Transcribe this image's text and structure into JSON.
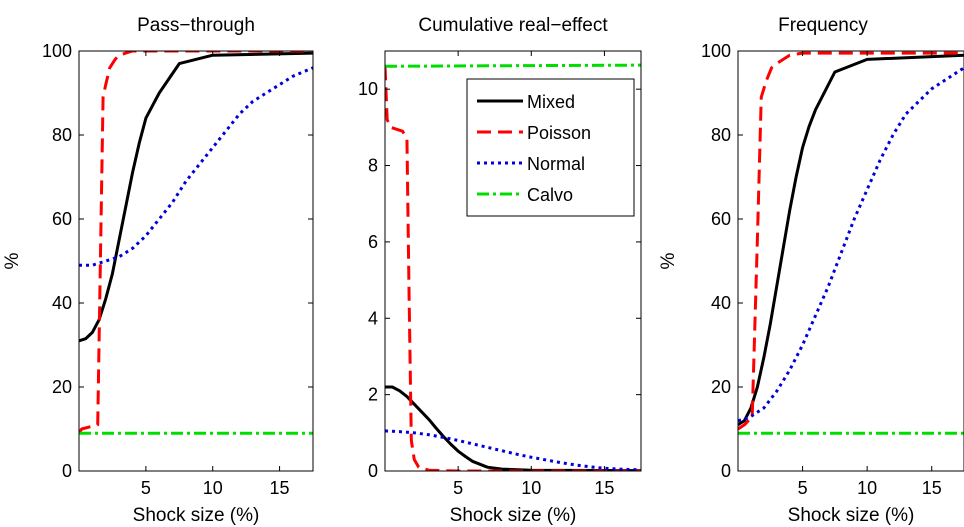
{
  "chart_data": [
    {
      "type": "line",
      "title": "Pass−through",
      "xlabel": "Shock size (%)",
      "ylabel": "%",
      "xlim": [
        0,
        17.5
      ],
      "ylim": [
        0,
        100
      ],
      "xticks": [
        {
          "v": 5,
          "label": "5"
        },
        {
          "v": 10,
          "label": "10"
        },
        {
          "v": 15,
          "label": "15"
        }
      ],
      "yticks": [
        {
          "v": 0,
          "label": "0"
        },
        {
          "v": 20,
          "label": "20"
        },
        {
          "v": 40,
          "label": "40"
        },
        {
          "v": 60,
          "label": "60"
        },
        {
          "v": 80,
          "label": "80"
        },
        {
          "v": 100,
          "label": "100"
        }
      ],
      "grid": false,
      "series": [
        {
          "key": "mixed",
          "x": [
            0,
            0.5,
            1,
            1.5,
            2,
            2.5,
            3,
            3.5,
            4,
            4.5,
            5,
            5.5,
            6,
            7.5,
            10,
            17.5
          ],
          "y": [
            31,
            31.5,
            33,
            36,
            41,
            47,
            55,
            63,
            71,
            78,
            84,
            87,
            90,
            97,
            99,
            99.5
          ]
        },
        {
          "key": "poisson",
          "x": [
            0,
            0.2,
            1.4,
            1.6,
            1.8,
            2,
            2.3,
            2.7,
            3,
            3.5,
            4,
            5,
            17.5
          ],
          "y": [
            9,
            10,
            11,
            50,
            89,
            92,
            96,
            98,
            99,
            99.5,
            100,
            100,
            100
          ]
        },
        {
          "key": "normal",
          "x": [
            0,
            1,
            2,
            3,
            4,
            5,
            6,
            7,
            8,
            9,
            10,
            11,
            12,
            13,
            14,
            15,
            16,
            17.5
          ],
          "y": [
            49,
            49,
            50,
            51,
            53,
            56,
            60,
            64,
            69,
            73,
            77,
            81,
            85,
            88,
            90,
            92,
            94,
            96
          ]
        },
        {
          "key": "calvo",
          "x": [
            0,
            17.5
          ],
          "y": [
            9,
            9
          ]
        }
      ]
    },
    {
      "type": "line",
      "title": "Cumulative real−effect",
      "xlabel": "Shock size (%)",
      "xlim": [
        0,
        17.5
      ],
      "ylim": [
        0,
        11
      ],
      "xticks": [
        {
          "v": 5,
          "label": "5"
        },
        {
          "v": 10,
          "label": "10"
        },
        {
          "v": 15,
          "label": "15"
        }
      ],
      "yticks": [
        {
          "v": 0,
          "label": "0"
        },
        {
          "v": 2,
          "label": "2"
        },
        {
          "v": 4,
          "label": "4"
        },
        {
          "v": 6,
          "label": "6"
        },
        {
          "v": 8,
          "label": "8"
        },
        {
          "v": 10,
          "label": "10"
        }
      ],
      "grid": false,
      "legend": {
        "position": "top-right",
        "entries": [
          "Mixed",
          "Poisson",
          "Normal",
          "Calvo"
        ]
      },
      "series": [
        {
          "key": "mixed",
          "name": "Mixed",
          "x": [
            0,
            0.5,
            1,
            1.5,
            2,
            2.5,
            3,
            3.5,
            4,
            4.5,
            5,
            5.5,
            6,
            7,
            8,
            10,
            17.5
          ],
          "y": [
            2.2,
            2.2,
            2.1,
            1.95,
            1.75,
            1.55,
            1.35,
            1.12,
            0.9,
            0.7,
            0.52,
            0.38,
            0.25,
            0.1,
            0.05,
            0.02,
            0.01
          ]
        },
        {
          "key": "poisson",
          "name": "Poisson",
          "x": [
            0,
            0.15,
            0.4,
            0.8,
            1.2,
            1.5,
            1.65,
            1.8,
            2,
            2.3,
            3,
            5,
            17.5
          ],
          "y": [
            10.6,
            9.2,
            9.0,
            8.95,
            8.9,
            8.7,
            4.5,
            0.8,
            0.3,
            0.1,
            0.02,
            0,
            0
          ]
        },
        {
          "key": "normal",
          "name": "Normal",
          "x": [
            0,
            1,
            2,
            3,
            4,
            5,
            6,
            7,
            8,
            9,
            10,
            11,
            12,
            13,
            14,
            15,
            16,
            17.5
          ],
          "y": [
            1.05,
            1.03,
            1.0,
            0.95,
            0.88,
            0.8,
            0.71,
            0.62,
            0.53,
            0.44,
            0.36,
            0.29,
            0.22,
            0.16,
            0.11,
            0.07,
            0.05,
            0.03
          ]
        },
        {
          "key": "calvo",
          "name": "Calvo",
          "x": [
            0,
            17.5
          ],
          "y": [
            10.6,
            10.63
          ]
        }
      ]
    },
    {
      "type": "line",
      "title": "Frequency",
      "xlabel": "Shock size (%)",
      "ylabel": "%",
      "xlim": [
        0,
        17.5
      ],
      "ylim": [
        0,
        100
      ],
      "xticks": [
        {
          "v": 5,
          "label": "5"
        },
        {
          "v": 10,
          "label": "10"
        },
        {
          "v": 15,
          "label": "15"
        }
      ],
      "yticks": [
        {
          "v": 0,
          "label": "0"
        },
        {
          "v": 20,
          "label": "20"
        },
        {
          "v": 40,
          "label": "40"
        },
        {
          "v": 60,
          "label": "60"
        },
        {
          "v": 80,
          "label": "80"
        },
        {
          "v": 100,
          "label": "100"
        }
      ],
      "grid": false,
      "series": [
        {
          "key": "mixed",
          "x": [
            0,
            0.5,
            1,
            1.5,
            2,
            2.5,
            3,
            3.5,
            4,
            4.5,
            5,
            5.5,
            6,
            7.5,
            10,
            17.5
          ],
          "y": [
            11,
            12,
            15,
            20,
            27,
            35,
            44,
            53,
            62,
            70,
            77,
            82,
            86,
            95,
            98,
            99
          ]
        },
        {
          "key": "poisson",
          "x": [
            0,
            0.5,
            1.1,
            1.5,
            1.8,
            2.2,
            2.6,
            3,
            3.5,
            4,
            5,
            17.5
          ],
          "y": [
            10,
            11,
            13,
            55,
            89,
            93,
            96,
            97,
            98,
            99,
            99.5,
            99.5
          ]
        },
        {
          "key": "normal",
          "x": [
            0,
            0.5,
            1,
            2,
            3,
            4,
            5,
            6,
            7,
            8,
            9,
            10,
            11,
            12,
            13,
            14,
            15,
            16,
            17.5
          ],
          "y": [
            12,
            12.3,
            13,
            15,
            19,
            24,
            30,
            37,
            44,
            52,
            60,
            67,
            74,
            80,
            85,
            88,
            91,
            93,
            96
          ]
        },
        {
          "key": "calvo",
          "x": [
            0,
            17.5
          ],
          "y": [
            9,
            9
          ]
        }
      ]
    }
  ],
  "styles": {
    "mixed": {
      "color": "#000000",
      "dash": ""
    },
    "poisson": {
      "color": "#ff0000",
      "dash": "14 7"
    },
    "normal": {
      "color": "#0000dd",
      "dash": "3 4"
    },
    "calvo": {
      "color": "#00dd00",
      "dash": "12 4 3 4"
    }
  }
}
